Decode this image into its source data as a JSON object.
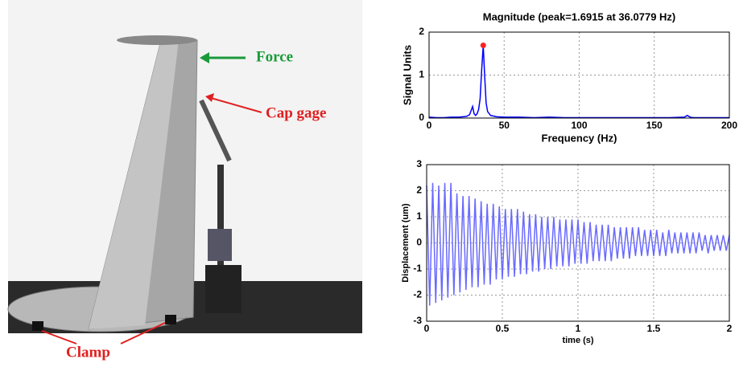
{
  "photo": {
    "labels": [
      "Force",
      "Cap gage",
      "Clamp"
    ]
  },
  "chart_data": [
    {
      "type": "line",
      "title": "Magnitude (peak=1.6915 at 36.0779 Hz)",
      "xlabel": "Frequency (Hz)",
      "ylabel": "Signal Units",
      "xlim": [
        0,
        200
      ],
      "xticks": [
        0,
        50,
        100,
        150,
        200
      ],
      "ylim": [
        0,
        2
      ],
      "yticks": [
        0,
        1,
        2
      ],
      "grid": true,
      "color": "#0000ff",
      "x": [
        0,
        5,
        10,
        15,
        20,
        25,
        27,
        29,
        30,
        31,
        32,
        33,
        34,
        35,
        36.0779,
        37,
        38,
        39,
        41,
        45,
        50,
        60,
        70,
        80,
        90,
        100,
        110,
        120,
        130,
        140,
        150,
        160,
        170,
        172,
        174,
        176,
        180,
        190,
        200
      ],
      "values": [
        0.02,
        0.01,
        0.01,
        0.02,
        0.02,
        0.04,
        0.08,
        0.27,
        0.1,
        0.06,
        0.1,
        0.2,
        0.45,
        1.1,
        1.6915,
        1.0,
        0.35,
        0.15,
        0.06,
        0.03,
        0.02,
        0.02,
        0.01,
        0.02,
        0.01,
        0.01,
        0.01,
        0.01,
        0.01,
        0.01,
        0.01,
        0.01,
        0.02,
        0.06,
        0.02,
        0.01,
        0.01,
        0.01,
        0.01
      ],
      "peak": {
        "x": 36.0779,
        "value": 1.6915,
        "color": "#ff2020"
      }
    },
    {
      "type": "line",
      "xlabel": "time (s)",
      "ylabel": "Displacement (um)",
      "xlim": [
        0,
        2
      ],
      "xticks": [
        0,
        0.5,
        1,
        1.5,
        2
      ],
      "ylim": [
        -3,
        3
      ],
      "yticks": [
        -3,
        -2,
        -1,
        0,
        1,
        2,
        3
      ],
      "grid": true,
      "color": "#6a6aff",
      "x": [
        0,
        0.02,
        0.04,
        0.06,
        0.08,
        0.1,
        0.12,
        0.14,
        0.16,
        0.18,
        0.2,
        0.22,
        0.24,
        0.26,
        0.28,
        0.3,
        0.32,
        0.34,
        0.36,
        0.38,
        0.4,
        0.42,
        0.44,
        0.46,
        0.48,
        0.5,
        0.52,
        0.54,
        0.56,
        0.58,
        0.6,
        0.62,
        0.64,
        0.66,
        0.68,
        0.7,
        0.72,
        0.74,
        0.76,
        0.78,
        0.8,
        0.82,
        0.84,
        0.86,
        0.88,
        0.9,
        0.92,
        0.94,
        0.96,
        0.98,
        1,
        1.02,
        1.04,
        1.06,
        1.08,
        1.1,
        1.12,
        1.14,
        1.16,
        1.18,
        1.2,
        1.22,
        1.24,
        1.26,
        1.28,
        1.3,
        1.32,
        1.34,
        1.36,
        1.38,
        1.4,
        1.42,
        1.44,
        1.46,
        1.48,
        1.5,
        1.52,
        1.54,
        1.56,
        1.58,
        1.6,
        1.62,
        1.64,
        1.66,
        1.68,
        1.7,
        1.72,
        1.74,
        1.76,
        1.78,
        1.8,
        1.82,
        1.84,
        1.86,
        1.88,
        1.9,
        1.92,
        1.94,
        1.96,
        1.98,
        2
      ],
      "values": [
        2.2,
        -2.4,
        2.3,
        -2.3,
        2.2,
        -2.2,
        2.3,
        -2.1,
        2.3,
        -2.0,
        1.9,
        -1.9,
        1.8,
        -1.8,
        1.8,
        -1.7,
        1.7,
        -1.7,
        1.6,
        -1.6,
        1.5,
        -1.6,
        1.5,
        -1.4,
        1.4,
        -1.4,
        1.3,
        -1.3,
        1.3,
        -1.3,
        1.3,
        -1.2,
        1.2,
        -1.2,
        1.1,
        -1.1,
        1.1,
        -1.1,
        1.0,
        -1.0,
        1.0,
        -1.0,
        1.0,
        -0.9,
        0.9,
        -0.9,
        0.9,
        -0.9,
        0.9,
        -0.8,
        0.9,
        -0.8,
        0.8,
        -0.8,
        0.8,
        -0.7,
        0.7,
        -0.7,
        0.7,
        -0.7,
        0.7,
        -0.7,
        0.6,
        -0.6,
        0.6,
        -0.6,
        0.6,
        -0.6,
        0.6,
        -0.5,
        0.6,
        -0.5,
        0.5,
        -0.5,
        0.5,
        -0.5,
        0.5,
        -0.5,
        0.4,
        -0.5,
        0.5,
        -0.4,
        0.4,
        -0.4,
        0.4,
        -0.4,
        0.4,
        -0.4,
        0.4,
        -0.4,
        0.4,
        -0.3,
        0.3,
        -0.4,
        0.3,
        -0.3,
        0.3,
        -0.3,
        0.3,
        -0.3,
        0.3
      ]
    }
  ]
}
